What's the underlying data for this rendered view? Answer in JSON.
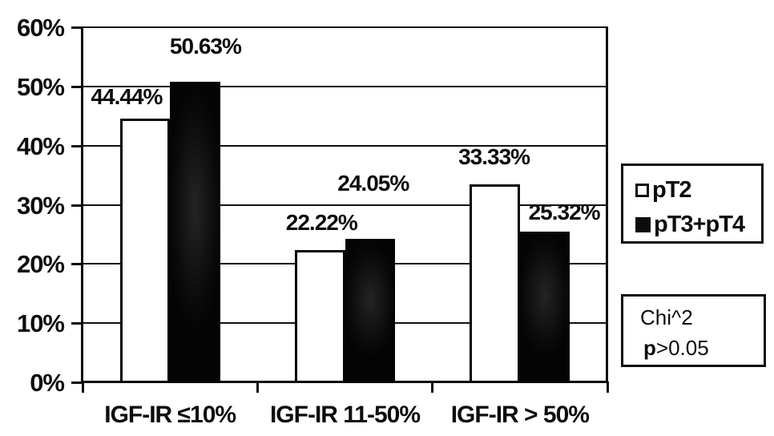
{
  "chart_data": {
    "type": "bar",
    "title": "",
    "categories": [
      "IGF-IR ≤10%",
      "IGF-IR 11-50%",
      "IGF-IR > 50%"
    ],
    "series": [
      {
        "name": "pT2",
        "style": "open",
        "values": [
          44.44,
          22.22,
          33.33
        ],
        "data_labels": [
          "44.44%",
          "22.22%",
          "33.33%"
        ]
      },
      {
        "name": "pT3+pT4",
        "style": "filled",
        "values": [
          50.63,
          24.05,
          25.32
        ],
        "data_labels": [
          "50.63%",
          "24.05%",
          "25.32%"
        ]
      }
    ],
    "ylabel": "",
    "xlabel": "",
    "ylim": [
      0,
      60
    ],
    "y_ticks": [
      0,
      10,
      20,
      30,
      40,
      50,
      60
    ],
    "y_tick_labels": [
      "0%",
      "10%",
      "20%",
      "30%",
      "40%",
      "50%",
      "60%"
    ],
    "grid": "horizontal",
    "legend_position": "right",
    "annotation": "Chi^2 p>0.05"
  },
  "legend_box": {
    "items": [
      {
        "label": "pT2",
        "swatch": "open-square"
      },
      {
        "label": "pT3+pT4",
        "swatch": "filled-square"
      }
    ]
  },
  "stats_box": {
    "line1": "Chi^2",
    "line2_lead": "p",
    "line2_rest": ">0.05"
  },
  "colors": {
    "ink": "#0d0d0d",
    "background": "#ffffff",
    "bar_open_fill": "#ffffff",
    "bar_filled_fill": "#0a0a0a"
  }
}
